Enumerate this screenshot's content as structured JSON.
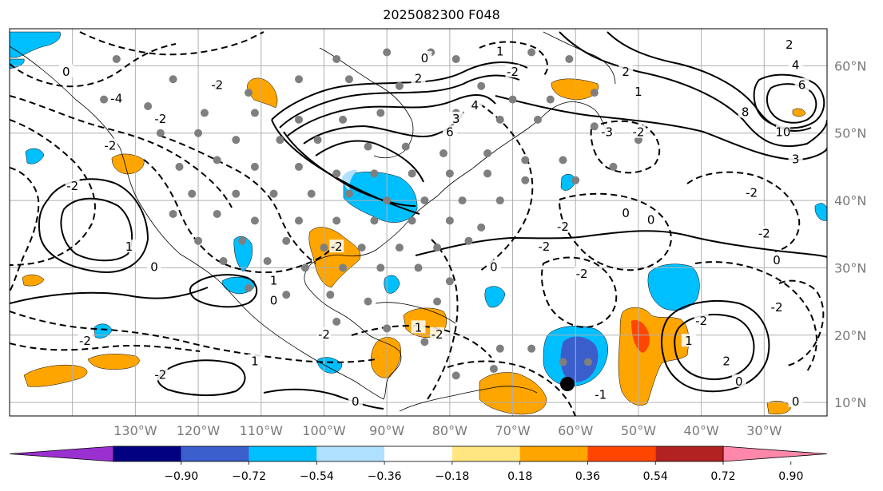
{
  "title": "2025082300 F048",
  "lon_labels": [
    "130°W",
    "120°W",
    "110°W",
    "100°W",
    "90°W",
    "80°W",
    "70°W",
    "60°W",
    "50°W",
    "40°W",
    "30°W"
  ],
  "lat_labels": [
    "60°N",
    "50°N",
    "40°N",
    "30°N",
    "20°N",
    "10°N"
  ],
  "colorbar": {
    "ticks": [
      "−0.90",
      "−0.72",
      "−0.54",
      "−0.36",
      "−0.18",
      "0.18",
      "0.36",
      "0.54",
      "0.72",
      "0.90"
    ],
    "colors": [
      "#9b30d0",
      "#000080",
      "#3a5fcd",
      "#00bfff",
      "#b0e0ff",
      "#ffffff",
      "#ffe680",
      "#ffa500",
      "#ff4500",
      "#b22222",
      "#ff88aa"
    ]
  },
  "shade_colors": {
    "light_blue": "#b0e0ff",
    "blue": "#00bfff",
    "mid_blue": "#3a5fcd",
    "orange": "#ffa500",
    "yellow": "#ffe680",
    "red": "#ff4500"
  },
  "contour_labels": [
    {
      "text": "0",
      "lon": -84,
      "lat": 61
    },
    {
      "text": "2",
      "lon": -85,
      "lat": 58
    },
    {
      "text": "3",
      "lon": -79,
      "lat": 52
    },
    {
      "text": "4",
      "lon": -76,
      "lat": 54
    },
    {
      "text": "6",
      "lon": -80,
      "lat": 50
    },
    {
      "text": "-2",
      "lon": -117,
      "lat": 57
    },
    {
      "text": "-2",
      "lon": -126,
      "lat": 52
    },
    {
      "text": "-4",
      "lon": -133,
      "lat": 55
    },
    {
      "text": "-2",
      "lon": -134,
      "lat": 48
    },
    {
      "text": "-2",
      "lon": -140,
      "lat": 42
    },
    {
      "text": "0",
      "lon": -141,
      "lat": 59
    },
    {
      "text": "1",
      "lon": -131,
      "lat": 33
    },
    {
      "text": "0",
      "lon": -127,
      "lat": 30
    },
    {
      "text": "-2",
      "lon": -138,
      "lat": 19
    },
    {
      "text": "1",
      "lon": -108,
      "lat": 28
    },
    {
      "text": "0",
      "lon": -108,
      "lat": 25
    },
    {
      "text": "-2",
      "lon": -98,
      "lat": 33
    },
    {
      "text": "-2",
      "lon": -100,
      "lat": 20
    },
    {
      "text": "-2",
      "lon": -126,
      "lat": 14
    },
    {
      "text": "1",
      "lon": -111,
      "lat": 16
    },
    {
      "text": "0",
      "lon": -95,
      "lat": 10
    },
    {
      "text": "-2",
      "lon": -82,
      "lat": 20
    },
    {
      "text": "1",
      "lon": -85,
      "lat": 21
    },
    {
      "text": "0",
      "lon": -73,
      "lat": 30
    },
    {
      "text": "-2",
      "lon": -65,
      "lat": 33
    },
    {
      "text": "-2",
      "lon": -59,
      "lat": 29
    },
    {
      "text": "-2",
      "lon": -62,
      "lat": 36
    },
    {
      "text": "0",
      "lon": -52,
      "lat": 38
    },
    {
      "text": "0",
      "lon": -48,
      "lat": 37
    },
    {
      "text": "-2",
      "lon": -30,
      "lat": 35
    },
    {
      "text": "0",
      "lon": -28,
      "lat": 31
    },
    {
      "text": "-2",
      "lon": -32,
      "lat": 41
    },
    {
      "text": "2",
      "lon": -52,
      "lat": 59
    },
    {
      "text": "1",
      "lon": -50,
      "lat": 56
    },
    {
      "text": "8",
      "lon": -33,
      "lat": 53
    },
    {
      "text": "10",
      "lon": -27,
      "lat": 50
    },
    {
      "text": "3",
      "lon": -25,
      "lat": 46
    },
    {
      "text": "-2",
      "lon": -70,
      "lat": 59
    },
    {
      "text": "1",
      "lon": -72,
      "lat": 62
    },
    {
      "text": "-3",
      "lon": -55,
      "lat": 50
    },
    {
      "text": "-2",
      "lon": -50,
      "lat": 50
    },
    {
      "text": "-1",
      "lon": -56,
      "lat": 11
    },
    {
      "text": "-2",
      "lon": -40,
      "lat": 22
    },
    {
      "text": "1",
      "lon": -42,
      "lat": 19
    },
    {
      "text": "2",
      "lon": -36,
      "lat": 16
    },
    {
      "text": "0",
      "lon": -34,
      "lat": 13
    },
    {
      "text": "-2",
      "lon": -28,
      "lat": 24
    },
    {
      "text": "0",
      "lon": -25,
      "lat": 10
    },
    {
      "text": "2",
      "lon": -26,
      "lat": 63
    },
    {
      "text": "4",
      "lon": -25,
      "lat": 60
    },
    {
      "text": "6",
      "lon": -24,
      "lat": 57
    }
  ]
}
